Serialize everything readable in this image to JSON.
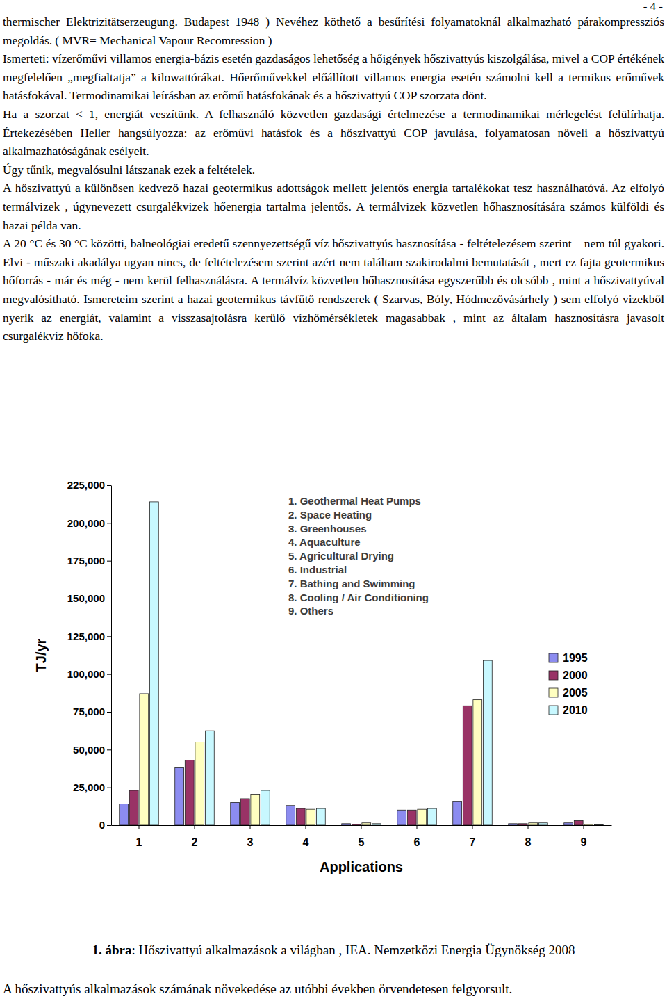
{
  "page": {
    "page_number": "- 4 -",
    "paragraphs": [
      "thermischer Elektrizitätserzeugung. Budapest 1948 ) Nevéhez köthető a besűrítési folyamatoknál alkalmazható párakompressziós megoldás. ( MVR= Mechanical Vapour Recomression )",
      "Ismerteti: vízerőművi villamos energia-bázis esetén gazdaságos lehetőség a hőigények hőszivattyús kiszolgálása, mivel a COP értékének megfelelően „megfialtatja” a kilowattórákat. Hőerőművekkel előállított villamos energia esetén számolni kell a termikus erőművek hatásfokával. Termodinamikai leírásban az erőmű hatásfokának és a hőszivattyú COP szorzata dönt.",
      "Ha a szorzat < 1, energiát veszítünk. A felhasználó közvetlen gazdasági értelmezése a termodinamikai mérlegelést felülírhatja. Értekezésében Heller hangsúlyozza: az erőművi hatásfok és a hőszivattyú COP javulása, folyamatosan növeli a hőszivattyú alkalmazhatóságának esélyeit.",
      "Úgy tűnik, megvalósulni látszanak ezek a feltételek.",
      "A hőszivattyú a különösen kedvező hazai geotermikus adottságok mellett jelentős energia tartalékokat tesz használhatóvá. Az elfolyó termálvizek , úgynevezett csurgalékvizek hőenergia tartalma jelentős. A termálvizek közvetlen hőhasznosítására számos külföldi és hazai példa van.",
      " A 20 °C és 30 °C közötti, balneológiai eredetű szennyezettségű víz hőszivattyús hasznosítása - feltételezésem szerint – nem túl gyakori. Elvi - műszaki akadálya ugyan nincs, de feltételezésem szerint azért nem találtam szakirodalmi bemutatását , mert ez fajta geotermikus hőforrás - már és még - nem kerül felhasználásra. A termálvíz közvetlen hőhasznosítása egyszerűbb és olcsóbb , mint a hőszivattyúval megvalósítható. Ismereteim szerint a hazai geotermikus távfűtő rendszerek ( Szarvas, Bóly, Hódmezővásárhely ) sem elfolyó vizekből nyerik az energiát, valamint a visszasajtolásra kerülő vízhőmérsékletek magasabbak , mint az általam hasznosításra javasolt csurgalékvíz hőfoka."
    ],
    "caption": {
      "label": "1. ábra",
      "text": ": Hőszivattyú alkalmazások a világban , IEA. Nemzetközi Energia Ügynökség 2008"
    },
    "footer_text": "A hőszivattyús alkalmazások számának növekedése az utóbbi években örvendetesen felgyorsult."
  },
  "chart_data": {
    "type": "bar",
    "x_label": "Applications",
    "y_label": "TJ/yr",
    "categories": [
      "1",
      "2",
      "3",
      "4",
      "5",
      "6",
      "7",
      "8",
      "9"
    ],
    "series": [
      {
        "name": "1995",
        "color": "#8c8cf0",
        "values": [
          14000,
          38000,
          15000,
          13000,
          1000,
          10000,
          15500,
          1000,
          1500
        ]
      },
      {
        "name": "2000",
        "color": "#993366",
        "values": [
          23000,
          43000,
          17500,
          11000,
          600,
          10000,
          79000,
          1000,
          3000
        ]
      },
      {
        "name": "2005",
        "color": "#ffffc0",
        "values": [
          87000,
          55000,
          20500,
          10500,
          1500,
          10500,
          83000,
          1500,
          600
        ]
      },
      {
        "name": "2010",
        "color": "#c8f8ff",
        "values": [
          214000,
          62500,
          23000,
          11000,
          1000,
          11000,
          109000,
          1500,
          400
        ]
      }
    ],
    "ylim": [
      0,
      225000
    ],
    "yticks": [
      0,
      {
        "value": 25000,
        "label": "25,000"
      },
      {
        "value": 50000,
        "label": "50,000"
      },
      {
        "value": 75000,
        "label": "75,000"
      },
      {
        "value": 100000,
        "label": "100,000"
      },
      {
        "value": 125000,
        "label": "125,000"
      },
      {
        "value": 150000,
        "label": "150,000"
      },
      {
        "value": 175000,
        "label": "175,000"
      },
      {
        "value": 200000,
        "label": "200,000"
      },
      {
        "value": 225000,
        "label": "225,000"
      }
    ],
    "annotations": [
      "1. Geothermal Heat Pumps",
      "2. Space Heating",
      "3. Greenhouses",
      "4. Aquaculture",
      "5. Agricultural Drying",
      "6. Industrial",
      "7. Bathing and Swimming",
      "8. Cooling / Air Conditioning",
      "9. Others"
    ],
    "legend": "right",
    "grid": false
  }
}
